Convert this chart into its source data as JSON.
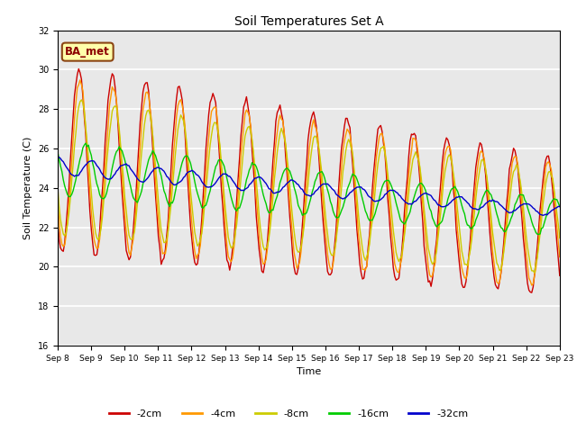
{
  "title": "Soil Temperatures Set A",
  "xlabel": "Time",
  "ylabel": "Soil Temperature (C)",
  "ylim": [
    16,
    32
  ],
  "yticks": [
    16,
    18,
    20,
    22,
    24,
    26,
    28,
    30,
    32
  ],
  "colors": {
    "-2cm": "#cc0000",
    "-4cm": "#ff9900",
    "-8cm": "#cccc00",
    "-16cm": "#00cc00",
    "-32cm": "#0000cc"
  },
  "legend_labels": [
    "-2cm",
    "-4cm",
    "-8cm",
    "-16cm",
    "-32cm"
  ],
  "annotation_text": "BA_met",
  "bg_color": "#e8e8e8",
  "fig_bg_color": "#ffffff",
  "start_day": 8,
  "end_day": 23,
  "points_per_day": 24,
  "title_fontsize": 10,
  "axis_label_fontsize": 8,
  "tick_fontsize": 6.5,
  "legend_fontsize": 8
}
